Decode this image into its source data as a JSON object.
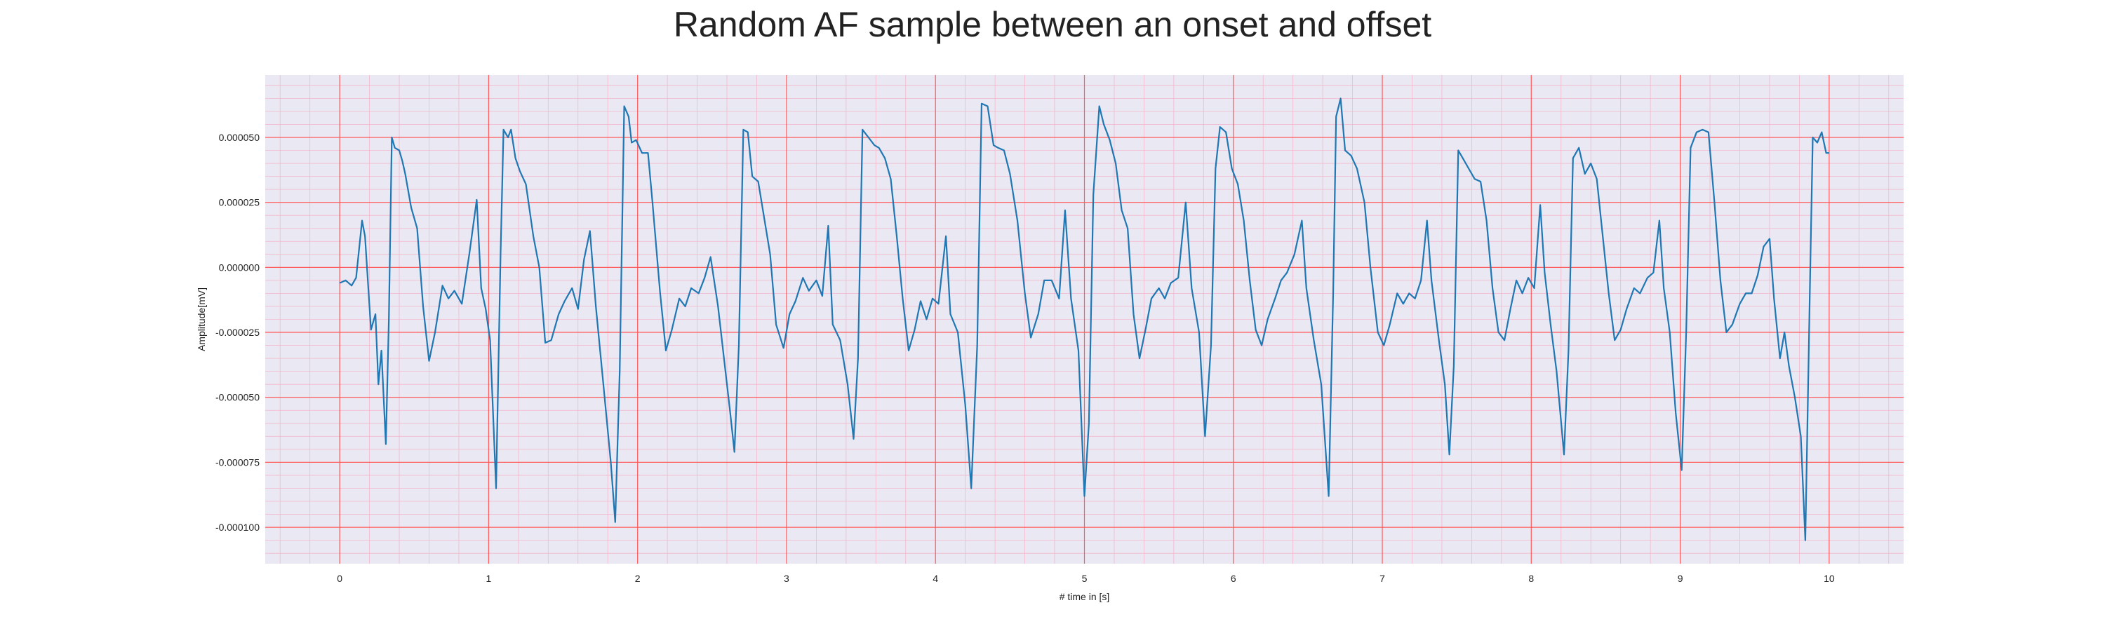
{
  "chart_data": {
    "type": "line",
    "title": "Random AF sample between an onset and offset",
    "xlabel": "# time in [s]",
    "ylabel": "Amplitude[mV]",
    "xlim": [
      -0.5,
      10.5
    ],
    "ylim": [
      -0.000114,
      7.4e-05
    ],
    "x_ticks": [
      0,
      1,
      2,
      3,
      4,
      5,
      6,
      7,
      8,
      9,
      10
    ],
    "x_tick_labels": [
      "0",
      "1",
      "2",
      "3",
      "4",
      "5",
      "6",
      "7",
      "8",
      "9",
      "10"
    ],
    "y_ticks": [
      5e-05,
      2.5e-05,
      0.0,
      -2.5e-05,
      -5e-05,
      -7.5e-05,
      -0.0001
    ],
    "y_tick_labels": [
      "0.000050",
      "0.000025",
      "0.000000",
      "-0.000025",
      "-0.000050",
      "-0.000075",
      "-0.000100"
    ],
    "grid": true,
    "grid_major_color": "#ff5b5b",
    "grid_minor_color": "#f3b8cc",
    "plot_background": "#eae8f2",
    "series": [
      {
        "color": "#1f77b4",
        "points": [
          [
            0.0,
            -6e-06
          ],
          [
            0.04,
            -5e-06
          ],
          [
            0.08,
            -7e-06
          ],
          [
            0.11,
            -4e-06
          ],
          [
            0.15,
            1.8e-05
          ],
          [
            0.17,
            1.2e-05
          ],
          [
            0.21,
            -2.4e-05
          ],
          [
            0.24,
            -1.8e-05
          ],
          [
            0.26,
            -4.5e-05
          ],
          [
            0.28,
            -3.2e-05
          ],
          [
            0.31,
            -6.8e-05
          ],
          [
            0.33,
            -2e-05
          ],
          [
            0.35,
            5e-05
          ],
          [
            0.37,
            4.6e-05
          ],
          [
            0.4,
            4.5e-05
          ],
          [
            0.42,
            4.1e-05
          ],
          [
            0.44,
            3.6e-05
          ],
          [
            0.48,
            2.3e-05
          ],
          [
            0.52,
            1.5e-05
          ],
          [
            0.56,
            -1.5e-05
          ],
          [
            0.6,
            -3.6e-05
          ],
          [
            0.64,
            -2.5e-05
          ],
          [
            0.69,
            -7e-06
          ],
          [
            0.73,
            -1.2e-05
          ],
          [
            0.77,
            -9e-06
          ],
          [
            0.82,
            -1.4e-05
          ],
          [
            0.87,
            5e-06
          ],
          [
            0.92,
            2.6e-05
          ],
          [
            0.95,
            -8e-06
          ],
          [
            0.98,
            -1.6e-05
          ],
          [
            1.01,
            -2.8e-05
          ],
          [
            1.05,
            -8.5e-05
          ],
          [
            1.08,
            5e-06
          ],
          [
            1.1,
            5.3e-05
          ],
          [
            1.13,
            5e-05
          ],
          [
            1.15,
            5.3e-05
          ],
          [
            1.18,
            4.2e-05
          ],
          [
            1.21,
            3.7e-05
          ],
          [
            1.25,
            3.2e-05
          ],
          [
            1.3,
            1.2e-05
          ],
          [
            1.34,
            0.0
          ],
          [
            1.38,
            -2.9e-05
          ],
          [
            1.42,
            -2.8e-05
          ],
          [
            1.47,
            -1.8e-05
          ],
          [
            1.51,
            -1.3e-05
          ],
          [
            1.56,
            -8e-06
          ],
          [
            1.6,
            -1.6e-05
          ],
          [
            1.64,
            3e-06
          ],
          [
            1.68,
            1.4e-05
          ],
          [
            1.72,
            -1.5e-05
          ],
          [
            1.77,
            -4.5e-05
          ],
          [
            1.82,
            -7.5e-05
          ],
          [
            1.85,
            -9.8e-05
          ],
          [
            1.88,
            -4e-05
          ],
          [
            1.91,
            6.2e-05
          ],
          [
            1.94,
            5.8e-05
          ],
          [
            1.96,
            4.8e-05
          ],
          [
            1.99,
            4.9e-05
          ],
          [
            2.03,
            4.4e-05
          ],
          [
            2.07,
            4.4e-05
          ],
          [
            2.1,
            2.5e-05
          ],
          [
            2.15,
            -9e-06
          ],
          [
            2.19,
            -3.2e-05
          ],
          [
            2.23,
            -2.4e-05
          ],
          [
            2.28,
            -1.2e-05
          ],
          [
            2.32,
            -1.5e-05
          ],
          [
            2.36,
            -8e-06
          ],
          [
            2.41,
            -1e-05
          ],
          [
            2.45,
            -4e-06
          ],
          [
            2.49,
            4e-06
          ],
          [
            2.54,
            -1.5e-05
          ],
          [
            2.58,
            -3.5e-05
          ],
          [
            2.62,
            -5.5e-05
          ],
          [
            2.65,
            -7.1e-05
          ],
          [
            2.68,
            -3e-05
          ],
          [
            2.71,
            5.3e-05
          ],
          [
            2.74,
            5.2e-05
          ],
          [
            2.77,
            3.5e-05
          ],
          [
            2.81,
            3.3e-05
          ],
          [
            2.85,
            1.9e-05
          ],
          [
            2.89,
            5e-06
          ],
          [
            2.93,
            -2.2e-05
          ],
          [
            2.98,
            -3.1e-05
          ],
          [
            3.02,
            -1.8e-05
          ],
          [
            3.06,
            -1.3e-05
          ],
          [
            3.11,
            -4e-06
          ],
          [
            3.15,
            -9e-06
          ],
          [
            3.2,
            -5e-06
          ],
          [
            3.24,
            -1.1e-05
          ],
          [
            3.28,
            1.6e-05
          ],
          [
            3.31,
            -2.2e-05
          ],
          [
            3.36,
            -2.8e-05
          ],
          [
            3.41,
            -4.5e-05
          ],
          [
            3.45,
            -6.6e-05
          ],
          [
            3.48,
            -3.5e-05
          ],
          [
            3.51,
            5.3e-05
          ],
          [
            3.55,
            5e-05
          ],
          [
            3.59,
            4.7e-05
          ],
          [
            3.62,
            4.6e-05
          ],
          [
            3.66,
            4.2e-05
          ],
          [
            3.7,
            3.4e-05
          ],
          [
            3.74,
            1.2e-05
          ],
          [
            3.78,
            -1.2e-05
          ],
          [
            3.82,
            -3.2e-05
          ],
          [
            3.86,
            -2.4e-05
          ],
          [
            3.9,
            -1.3e-05
          ],
          [
            3.94,
            -2e-05
          ],
          [
            3.98,
            -1.2e-05
          ],
          [
            4.02,
            -1.4e-05
          ],
          [
            4.07,
            1.2e-05
          ],
          [
            4.1,
            -1.8e-05
          ],
          [
            4.15,
            -2.5e-05
          ],
          [
            4.2,
            -5.3e-05
          ],
          [
            4.24,
            -8.5e-05
          ],
          [
            4.28,
            -3e-05
          ],
          [
            4.31,
            6.3e-05
          ],
          [
            4.35,
            6.2e-05
          ],
          [
            4.39,
            4.7e-05
          ],
          [
            4.42,
            4.6e-05
          ],
          [
            4.46,
            4.5e-05
          ],
          [
            4.5,
            3.6e-05
          ],
          [
            4.55,
            1.8e-05
          ],
          [
            4.6,
            -1e-05
          ],
          [
            4.64,
            -2.7e-05
          ],
          [
            4.69,
            -1.8e-05
          ],
          [
            4.73,
            -5e-06
          ],
          [
            4.78,
            -5e-06
          ],
          [
            4.83,
            -1.2e-05
          ],
          [
            4.87,
            2.2e-05
          ],
          [
            4.91,
            -1.2e-05
          ],
          [
            4.96,
            -3.2e-05
          ],
          [
            5.0,
            -8.8e-05
          ],
          [
            5.03,
            -6e-05
          ],
          [
            5.06,
            2.8e-05
          ],
          [
            5.1,
            6.2e-05
          ],
          [
            5.13,
            5.5e-05
          ],
          [
            5.17,
            4.9e-05
          ],
          [
            5.21,
            4e-05
          ],
          [
            5.25,
            2.2e-05
          ],
          [
            5.29,
            1.5e-05
          ],
          [
            5.33,
            -1.8e-05
          ],
          [
            5.37,
            -3.5e-05
          ],
          [
            5.41,
            -2.4e-05
          ],
          [
            5.45,
            -1.2e-05
          ],
          [
            5.5,
            -8e-06
          ],
          [
            5.54,
            -1.2e-05
          ],
          [
            5.58,
            -6e-06
          ],
          [
            5.63,
            -4e-06
          ],
          [
            5.68,
            2.5e-05
          ],
          [
            5.72,
            -8e-06
          ],
          [
            5.77,
            -2.5e-05
          ],
          [
            5.81,
            -6.5e-05
          ],
          [
            5.85,
            -3e-05
          ],
          [
            5.88,
            3.8e-05
          ],
          [
            5.91,
            5.4e-05
          ],
          [
            5.95,
            5.2e-05
          ],
          [
            5.99,
            3.8e-05
          ],
          [
            6.03,
            3.2e-05
          ],
          [
            6.07,
            1.8e-05
          ],
          [
            6.11,
            -5e-06
          ],
          [
            6.15,
            -2.4e-05
          ],
          [
            6.19,
            -3e-05
          ],
          [
            6.23,
            -2e-05
          ],
          [
            6.28,
            -1.2e-05
          ],
          [
            6.32,
            -5e-06
          ],
          [
            6.36,
            -2e-06
          ],
          [
            6.41,
            5e-06
          ],
          [
            6.46,
            1.8e-05
          ],
          [
            6.49,
            -8e-06
          ],
          [
            6.54,
            -2.8e-05
          ],
          [
            6.59,
            -4.5e-05
          ],
          [
            6.64,
            -8.8e-05
          ],
          [
            6.67,
            -1e-05
          ],
          [
            6.69,
            5.8e-05
          ],
          [
            6.72,
            6.5e-05
          ],
          [
            6.75,
            4.5e-05
          ],
          [
            6.79,
            4.3e-05
          ],
          [
            6.83,
            3.8e-05
          ],
          [
            6.88,
            2.5e-05
          ],
          [
            6.92,
            0.0
          ],
          [
            6.97,
            -2.5e-05
          ],
          [
            7.01,
            -3e-05
          ],
          [
            7.05,
            -2.2e-05
          ],
          [
            7.1,
            -1e-05
          ],
          [
            7.14,
            -1.4e-05
          ],
          [
            7.18,
            -1e-05
          ],
          [
            7.22,
            -1.2e-05
          ],
          [
            7.26,
            -5e-06
          ],
          [
            7.3,
            1.8e-05
          ],
          [
            7.33,
            -5e-06
          ],
          [
            7.38,
            -2.8e-05
          ],
          [
            7.42,
            -4.5e-05
          ],
          [
            7.45,
            -7.2e-05
          ],
          [
            7.48,
            -3.8e-05
          ],
          [
            7.51,
            4.5e-05
          ],
          [
            7.54,
            4.2e-05
          ],
          [
            7.58,
            3.8e-05
          ],
          [
            7.62,
            3.4e-05
          ],
          [
            7.66,
            3.3e-05
          ],
          [
            7.7,
            1.8e-05
          ],
          [
            7.74,
            -8e-06
          ],
          [
            7.78,
            -2.5e-05
          ],
          [
            7.82,
            -2.8e-05
          ],
          [
            7.86,
            -1.6e-05
          ],
          [
            7.9,
            -5e-06
          ],
          [
            7.94,
            -1e-05
          ],
          [
            7.98,
            -4e-06
          ],
          [
            8.02,
            -8e-06
          ],
          [
            8.06,
            2.4e-05
          ],
          [
            8.09,
            -2e-06
          ],
          [
            8.13,
            -2.2e-05
          ],
          [
            8.17,
            -4e-05
          ],
          [
            8.22,
            -7.2e-05
          ],
          [
            8.25,
            -3.2e-05
          ],
          [
            8.28,
            4.2e-05
          ],
          [
            8.32,
            4.6e-05
          ],
          [
            8.36,
            3.6e-05
          ],
          [
            8.4,
            4e-05
          ],
          [
            8.44,
            3.4e-05
          ],
          [
            8.48,
            1.2e-05
          ],
          [
            8.52,
            -1e-05
          ],
          [
            8.56,
            -2.8e-05
          ],
          [
            8.6,
            -2.4e-05
          ],
          [
            8.64,
            -1.6e-05
          ],
          [
            8.69,
            -8e-06
          ],
          [
            8.73,
            -1e-05
          ],
          [
            8.78,
            -4e-06
          ],
          [
            8.82,
            -2e-06
          ],
          [
            8.86,
            1.8e-05
          ],
          [
            8.89,
            -8e-06
          ],
          [
            8.93,
            -2.5e-05
          ],
          [
            8.97,
            -5.6e-05
          ],
          [
            9.01,
            -7.8e-05
          ],
          [
            9.04,
            -2.5e-05
          ],
          [
            9.07,
            4.6e-05
          ],
          [
            9.11,
            5.2e-05
          ],
          [
            9.15,
            5.3e-05
          ],
          [
            9.19,
            5.2e-05
          ],
          [
            9.23,
            2.5e-05
          ],
          [
            9.27,
            -5e-06
          ],
          [
            9.31,
            -2.5e-05
          ],
          [
            9.35,
            -2.2e-05
          ],
          [
            9.4,
            -1.4e-05
          ],
          [
            9.44,
            -1e-05
          ],
          [
            9.48,
            -1e-05
          ],
          [
            9.52,
            -3e-06
          ],
          [
            9.56,
            8e-06
          ],
          [
            9.6,
            1.1e-05
          ],
          [
            9.63,
            -1.2e-05
          ],
          [
            9.67,
            -3.5e-05
          ],
          [
            9.7,
            -2.5e-05
          ],
          [
            9.73,
            -3.8e-05
          ],
          [
            9.77,
            -5e-05
          ],
          [
            9.81,
            -6.5e-05
          ],
          [
            9.84,
            -0.000105
          ],
          [
            9.87,
            -1e-05
          ],
          [
            9.89,
            5e-05
          ],
          [
            9.92,
            4.8e-05
          ],
          [
            9.95,
            5.2e-05
          ],
          [
            9.98,
            4.4e-05
          ],
          [
            10.0,
            4.4e-05
          ]
        ]
      }
    ]
  }
}
